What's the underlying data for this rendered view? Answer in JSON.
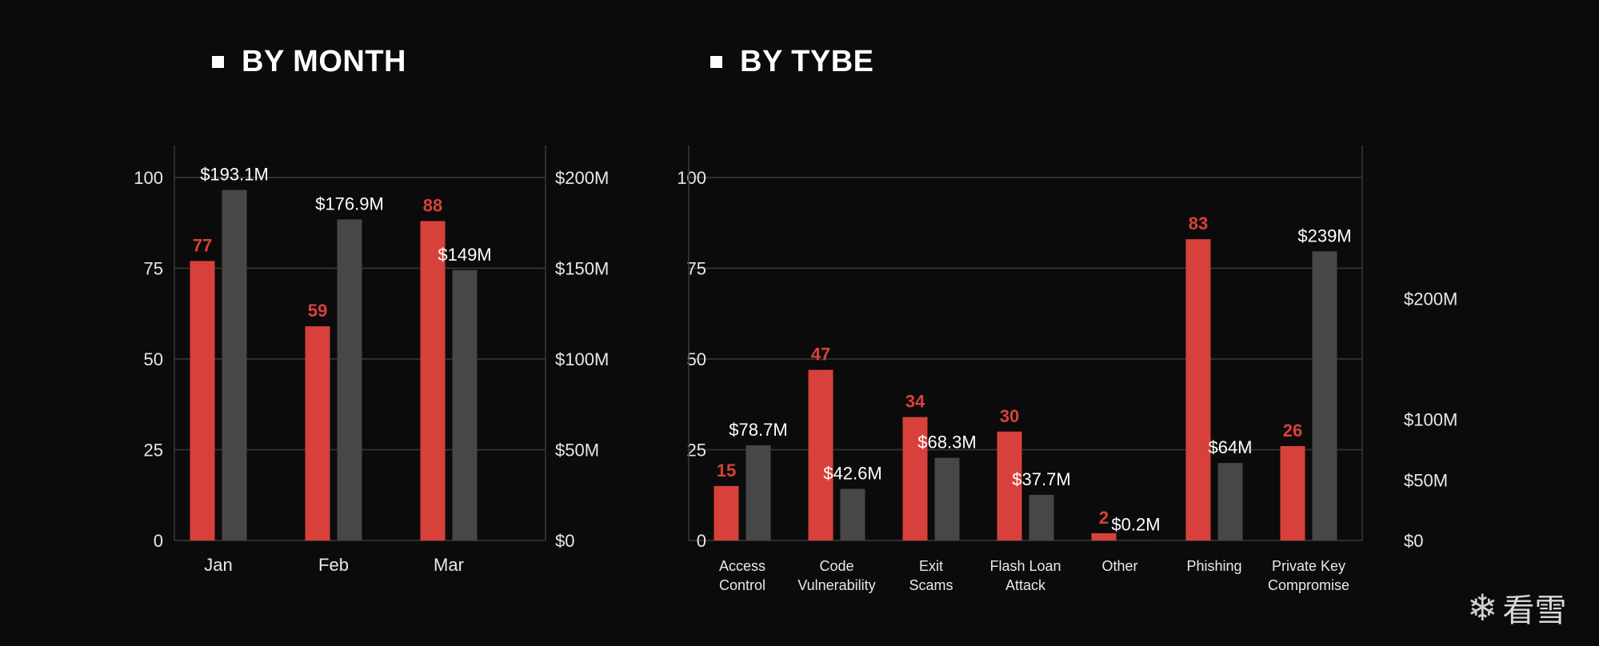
{
  "colors": {
    "count": "#d8413b",
    "amount": "#474747",
    "grid": "#3a3a3a",
    "axis_text": "#e8e8e8"
  },
  "titles": {
    "month": "BY MONTH",
    "type": "BY TYBE"
  },
  "watermark": {
    "text": "看雪",
    "icon": "snowflake-icon"
  },
  "chart_data": [
    {
      "type": "bar",
      "title": "BY MONTH",
      "categories": [
        "Jan",
        "Feb",
        "Mar"
      ],
      "left_axis": {
        "ticks": [
          0,
          25,
          50,
          75,
          100
        ],
        "ylim": [
          0,
          100
        ]
      },
      "right_axis": {
        "ticks": [
          "$0",
          "$50M",
          "$100M",
          "$150M",
          "$200M"
        ],
        "ylim": [
          0,
          200
        ]
      },
      "series": [
        {
          "axis": "left",
          "values": [
            77,
            59,
            88
          ],
          "labels": [
            "77",
            "59",
            "88"
          ]
        },
        {
          "axis": "right",
          "values": [
            193.1,
            176.9,
            149
          ],
          "labels": [
            "$193.1M",
            "$176.9M",
            "$149M"
          ]
        }
      ],
      "grid": true
    },
    {
      "type": "bar",
      "title": "BY TYBE",
      "categories": [
        [
          "Access",
          "Control"
        ],
        [
          "Code",
          "Vulnerability"
        ],
        [
          "Exit",
          "Scams"
        ],
        [
          "Flash Loan",
          "Attack"
        ],
        [
          "Other"
        ],
        [
          "Phishing"
        ],
        [
          "Private Key",
          "Compromise"
        ]
      ],
      "left_axis": {
        "ticks": [
          0,
          25,
          50,
          75,
          100
        ],
        "ylim": [
          0,
          100
        ]
      },
      "right_axis": {
        "ticks": [
          "$0",
          "$50M",
          "$100M",
          "$200M"
        ],
        "ylim": [
          0,
          300
        ]
      },
      "series": [
        {
          "axis": "left",
          "values": [
            15,
            47,
            34,
            30,
            2,
            83,
            26
          ],
          "labels": [
            "15",
            "47",
            "34",
            "30",
            "2",
            "83",
            "26"
          ]
        },
        {
          "axis": "right",
          "values": [
            78.7,
            42.6,
            68.3,
            37.7,
            0.2,
            64,
            239
          ],
          "labels": [
            "$78.7M",
            "$42.6M",
            "$68.3M",
            "$37.7M",
            "$0.2M",
            "$64M",
            "$239M"
          ]
        }
      ],
      "grid": true
    }
  ]
}
